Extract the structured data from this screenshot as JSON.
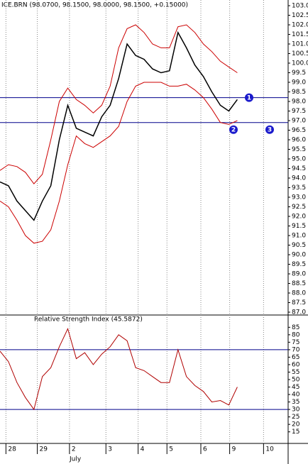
{
  "chart_data": [
    {
      "type": "line",
      "title": "ICE.BRN (98.0700, 98.1500, 98.0000, 98.1500, +0.15000)",
      "xlim": [
        0,
        34
      ],
      "xticks": [
        {
          "value": 0.7,
          "label": "28"
        },
        {
          "value": 4.4,
          "label": "29"
        },
        {
          "value": 8.2,
          "label": "2"
        },
        {
          "value": 12.5,
          "label": "3"
        },
        {
          "value": 16.3,
          "label": "4"
        },
        {
          "value": 19.7,
          "label": "5"
        },
        {
          "value": 23.7,
          "label": "6"
        },
        {
          "value": 27.1,
          "label": "9"
        },
        {
          "value": 31.1,
          "label": "10"
        }
      ],
      "month_label": "July",
      "ylim": [
        87,
        103
      ],
      "yticks": [
        {
          "value": 87,
          "label": "87.0"
        },
        {
          "value": 87.5,
          "label": "87.5"
        },
        {
          "value": 88,
          "label": "88.0"
        },
        {
          "value": 88.5,
          "label": "88.5"
        },
        {
          "value": 89,
          "label": "89.0"
        },
        {
          "value": 89.5,
          "label": "89.5"
        },
        {
          "value": 90,
          "label": "90.0"
        },
        {
          "value": 90.5,
          "label": "90.5"
        },
        {
          "value": 91,
          "label": "91.0"
        },
        {
          "value": 91.5,
          "label": "91.5"
        },
        {
          "value": 92,
          "label": "92.0"
        },
        {
          "value": 92.5,
          "label": "92.5"
        },
        {
          "value": 93,
          "label": "93.0"
        },
        {
          "value": 93.5,
          "label": "93.5"
        },
        {
          "value": 94,
          "label": "94.0"
        },
        {
          "value": 94.5,
          "label": "94.5"
        },
        {
          "value": 95,
          "label": "95.0"
        },
        {
          "value": 95.5,
          "label": "95.5"
        },
        {
          "value": 96,
          "label": "96.0"
        },
        {
          "value": 96.5,
          "label": "96.5"
        },
        {
          "value": 97,
          "label": "97.0"
        },
        {
          "value": 97.5,
          "label": "97.5"
        },
        {
          "value": 98,
          "label": "98.0"
        },
        {
          "value": 98.5,
          "label": "98.5"
        },
        {
          "value": 99,
          "label": "99.0"
        },
        {
          "value": 99.5,
          "label": "99.5"
        },
        {
          "value": 100,
          "label": "100.0"
        },
        {
          "value": 100.5,
          "label": "100.5"
        },
        {
          "value": 101,
          "label": "101.0"
        },
        {
          "value": 101.5,
          "label": "101.5"
        },
        {
          "value": 102,
          "label": "102.0"
        },
        {
          "value": 102.5,
          "label": "102.5"
        },
        {
          "value": 103,
          "label": "103.0"
        }
      ],
      "series": [
        {
          "color": "#000000",
          "values": [
            93.8,
            93.6,
            92.8,
            92.3,
            91.8,
            92.8,
            93.6,
            96.0,
            97.8,
            96.6,
            96.4,
            96.2,
            97.2,
            97.8,
            99.2,
            101.0,
            100.4,
            100.2,
            99.7,
            99.5,
            99.6,
            101.6,
            100.8,
            99.9,
            99.3,
            98.5,
            97.8,
            97.5,
            98.1
          ]
        },
        {
          "color": "#cc0000",
          "values": [
            94.4,
            94.7,
            94.6,
            94.3,
            93.7,
            94.2,
            96.0,
            98.0,
            98.7,
            98.1,
            97.8,
            97.4,
            97.8,
            98.8,
            100.8,
            101.8,
            102.0,
            101.6,
            101.0,
            100.8,
            100.8,
            101.9,
            102.0,
            101.6,
            101.0,
            100.6,
            100.1,
            99.8,
            99.5
          ]
        },
        {
          "color": "#cc0000",
          "values": [
            92.8,
            92.5,
            91.8,
            91.0,
            90.6,
            90.7,
            91.3,
            92.8,
            94.7,
            96.2,
            95.8,
            95.6,
            95.9,
            96.2,
            96.7,
            98.0,
            98.8,
            99.0,
            99.0,
            99.0,
            98.8,
            98.8,
            98.9,
            98.6,
            98.2,
            97.6,
            96.9,
            96.8,
            97.0
          ]
        }
      ],
      "hlines": [
        98.2,
        96.9
      ],
      "hline_color": "#00008b",
      "annotations": [
        {
          "label": "1"
        },
        {
          "label": "2"
        },
        {
          "label": "3"
        }
      ]
    },
    {
      "type": "line",
      "title": "Relative Strength Index (45.5872)",
      "xlim": [
        0,
        34
      ],
      "ylim": [
        12,
        88
      ],
      "yticks": [
        15,
        20,
        25,
        30,
        35,
        40,
        45,
        50,
        55,
        60,
        65,
        70,
        75,
        80,
        85
      ],
      "series": [
        {
          "color": "#b00000",
          "values": [
            69,
            62,
            48,
            38,
            30,
            52,
            58,
            72,
            84,
            64,
            68,
            60,
            67,
            72,
            80,
            76,
            58,
            56,
            52,
            48,
            48,
            70,
            52,
            46,
            42,
            35,
            36,
            33,
            45
          ]
        }
      ],
      "hlines": [
        70,
        30
      ],
      "hline_color": "#00008b"
    }
  ]
}
